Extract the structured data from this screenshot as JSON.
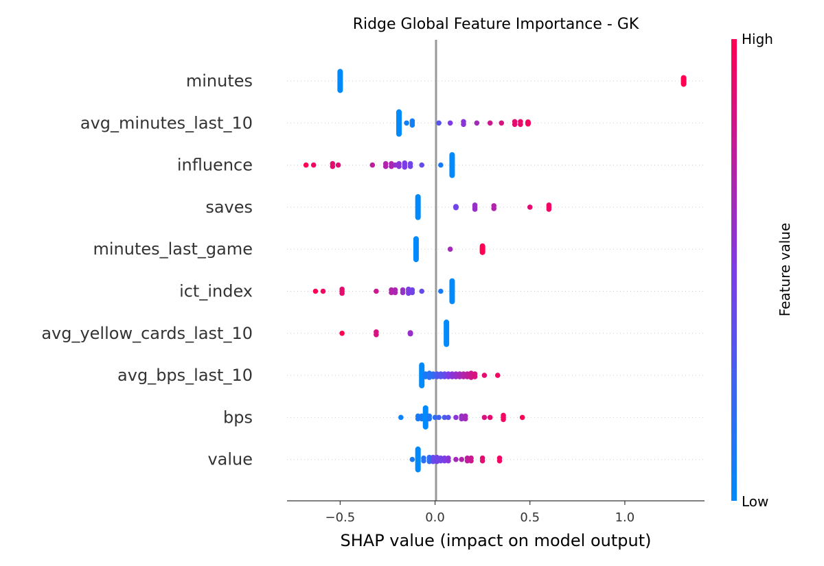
{
  "chart_data": {
    "type": "scatter",
    "title": "Ridge Global Feature Importance - GK",
    "xlabel": "SHAP value (impact on model output)",
    "xlim": [
      -0.78,
      1.42
    ],
    "xticks": [
      -0.5,
      0.0,
      0.5,
      1.0
    ],
    "xtick_labels": [
      "−0.5",
      "0.0",
      "0.5",
      "1.0"
    ],
    "colorbar": {
      "label": "Feature value",
      "high_label": "High",
      "low_label": "Low",
      "low_color": "#008afb",
      "mid_color": "#7d3ce6",
      "high_color": "#ff0052"
    },
    "grid": false,
    "features": [
      {
        "name": "minutes",
        "points": [
          [
            -0.5,
            0.0,
            24
          ],
          [
            1.31,
            1.0,
            10
          ]
        ]
      },
      {
        "name": "avg_minutes_last_10",
        "points": [
          [
            -0.19,
            0.0,
            30
          ],
          [
            -0.15,
            0.05,
            1
          ],
          [
            -0.12,
            0.07,
            3
          ],
          [
            0.02,
            0.35,
            1
          ],
          [
            0.08,
            0.5,
            1
          ],
          [
            0.15,
            0.55,
            2
          ],
          [
            0.22,
            0.65,
            1
          ],
          [
            0.29,
            0.8,
            1
          ],
          [
            0.35,
            0.85,
            1
          ],
          [
            0.42,
            0.9,
            2
          ],
          [
            0.45,
            0.92,
            2
          ],
          [
            0.49,
            0.95,
            5
          ]
        ]
      },
      {
        "name": "influence",
        "points": [
          [
            -0.68,
            1.0,
            1
          ],
          [
            -0.64,
            0.95,
            1
          ],
          [
            -0.54,
            0.9,
            2
          ],
          [
            -0.51,
            0.88,
            1
          ],
          [
            -0.33,
            0.75,
            1
          ],
          [
            -0.26,
            0.7,
            2
          ],
          [
            -0.23,
            0.68,
            2
          ],
          [
            -0.21,
            0.6,
            1
          ],
          [
            -0.19,
            0.55,
            2
          ],
          [
            -0.16,
            0.5,
            3
          ],
          [
            -0.13,
            0.45,
            2
          ],
          [
            -0.07,
            0.4,
            1
          ],
          [
            0.03,
            0.1,
            1
          ],
          [
            0.09,
            0.0,
            26
          ]
        ]
      },
      {
        "name": "saves",
        "points": [
          [
            -0.09,
            0.0,
            26
          ],
          [
            0.11,
            0.45,
            4
          ],
          [
            0.21,
            0.6,
            3
          ],
          [
            0.31,
            0.7,
            2
          ],
          [
            0.5,
            0.9,
            1
          ],
          [
            0.6,
            0.95,
            3
          ]
        ]
      },
      {
        "name": "minutes_last_game",
        "points": [
          [
            -0.1,
            0.0,
            26
          ],
          [
            0.08,
            0.65,
            1
          ],
          [
            0.25,
            1.0,
            10
          ]
        ]
      },
      {
        "name": "ict_index",
        "points": [
          [
            -0.63,
            1.0,
            1
          ],
          [
            -0.59,
            0.95,
            1
          ],
          [
            -0.49,
            0.9,
            3
          ],
          [
            -0.31,
            0.8,
            1
          ],
          [
            -0.23,
            0.7,
            2
          ],
          [
            -0.21,
            0.68,
            2
          ],
          [
            -0.17,
            0.6,
            2
          ],
          [
            -0.14,
            0.5,
            3
          ],
          [
            -0.12,
            0.45,
            2
          ],
          [
            -0.07,
            0.4,
            1
          ],
          [
            0.03,
            0.1,
            1
          ],
          [
            0.09,
            0.0,
            26
          ]
        ]
      },
      {
        "name": "avg_yellow_cards_last_10",
        "points": [
          [
            -0.49,
            1.0,
            1
          ],
          [
            -0.31,
            0.85,
            2
          ],
          [
            -0.13,
            0.6,
            4
          ],
          [
            0.06,
            0.0,
            28
          ]
        ]
      },
      {
        "name": "avg_bps_last_10",
        "points": [
          [
            -0.07,
            0.0,
            26
          ],
          [
            -0.05,
            0.1,
            2
          ],
          [
            -0.03,
            0.15,
            3
          ],
          [
            -0.01,
            0.2,
            2
          ],
          [
            0.01,
            0.3,
            2
          ],
          [
            0.03,
            0.35,
            2
          ],
          [
            0.05,
            0.4,
            2
          ],
          [
            0.07,
            0.5,
            2
          ],
          [
            0.09,
            0.55,
            2
          ],
          [
            0.11,
            0.6,
            2
          ],
          [
            0.13,
            0.65,
            2
          ],
          [
            0.15,
            0.7,
            2
          ],
          [
            0.17,
            0.75,
            2
          ],
          [
            0.19,
            0.8,
            3
          ],
          [
            0.21,
            0.85,
            2
          ],
          [
            0.26,
            0.9,
            1
          ],
          [
            0.33,
            0.95,
            1
          ]
        ]
      },
      {
        "name": "bps",
        "points": [
          [
            -0.18,
            0.05,
            1
          ],
          [
            -0.09,
            0.1,
            2
          ],
          [
            -0.07,
            0.1,
            2
          ],
          [
            -0.05,
            0.0,
            24
          ],
          [
            -0.03,
            0.12,
            2
          ],
          [
            0.0,
            0.2,
            1
          ],
          [
            0.02,
            0.25,
            1
          ],
          [
            0.05,
            0.3,
            1
          ],
          [
            0.07,
            0.35,
            1
          ],
          [
            0.11,
            0.55,
            1
          ],
          [
            0.14,
            0.6,
            2
          ],
          [
            0.16,
            0.65,
            2
          ],
          [
            0.26,
            0.85,
            1
          ],
          [
            0.29,
            0.9,
            1
          ],
          [
            0.36,
            0.95,
            3
          ],
          [
            0.46,
            1.0,
            1
          ]
        ]
      },
      {
        "name": "value",
        "points": [
          [
            -0.12,
            0.1,
            1
          ],
          [
            -0.09,
            0.0,
            26
          ],
          [
            -0.06,
            0.15,
            2
          ],
          [
            -0.03,
            0.2,
            3
          ],
          [
            -0.01,
            0.4,
            3
          ],
          [
            0.01,
            0.45,
            3
          ],
          [
            0.03,
            0.45,
            2
          ],
          [
            0.05,
            0.5,
            2
          ],
          [
            0.07,
            0.55,
            2
          ],
          [
            0.11,
            0.65,
            1
          ],
          [
            0.14,
            0.7,
            1
          ],
          [
            0.17,
            0.75,
            2
          ],
          [
            0.19,
            0.8,
            2
          ],
          [
            0.25,
            0.9,
            2
          ],
          [
            0.34,
            0.95,
            2
          ]
        ]
      }
    ]
  }
}
